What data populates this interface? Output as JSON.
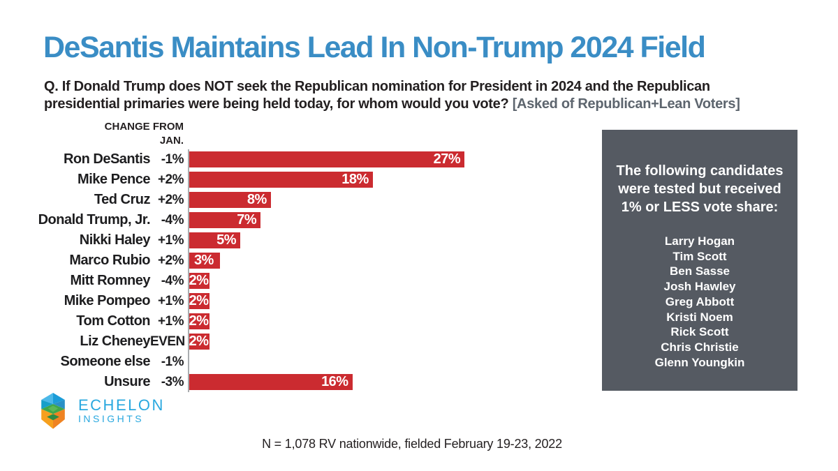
{
  "title": "DeSantis Maintains Lead In Non-Trump 2024 Field",
  "question": {
    "line1": "Q. If Donald Trump does NOT seek the Republican nomination for President in 2024 and the Republican",
    "line2": "presidential primaries were being held today, for whom would you vote?",
    "note": "[Asked of Republican+Lean Voters]"
  },
  "chart_data": {
    "type": "bar",
    "orientation": "horizontal",
    "change_header": [
      "CHANGE FROM",
      "JAN."
    ],
    "rows": [
      {
        "name": "Ron DeSantis",
        "change": "-1%",
        "value": 27,
        "label": "27%"
      },
      {
        "name": "Mike Pence",
        "change": "+2%",
        "value": 18,
        "label": "18%"
      },
      {
        "name": "Ted Cruz",
        "change": "+2%",
        "value": 8,
        "label": "8%"
      },
      {
        "name": "Donald Trump, Jr.",
        "change": "-4%",
        "value": 7,
        "label": "7%"
      },
      {
        "name": "Nikki Haley",
        "change": "+1%",
        "value": 5,
        "label": "5%"
      },
      {
        "name": "Marco Rubio",
        "change": "+2%",
        "value": 3,
        "label": "3%"
      },
      {
        "name": "Mitt Romney",
        "change": "-4%",
        "value": 2,
        "label": "2%"
      },
      {
        "name": "Mike Pompeo",
        "change": "+1%",
        "value": 2,
        "label": "2%"
      },
      {
        "name": "Tom Cotton",
        "change": "+1%",
        "value": 2,
        "label": "2%"
      },
      {
        "name": "Liz Cheney",
        "change": "EVEN",
        "value": 2,
        "label": "2%"
      },
      {
        "name": "Someone else",
        "change": "-1%",
        "value": 0,
        "label": ""
      },
      {
        "name": "Unsure",
        "change": "-3%",
        "value": 16,
        "label": "16%"
      }
    ],
    "xlim": [
      0,
      30
    ],
    "unit": "percent",
    "bar_color": "#cb2b30",
    "axis_color": "#a9adb0",
    "grid": false,
    "legend": false
  },
  "sidebox": {
    "heading": "The following candidates were tested but received 1% or LESS vote share:",
    "candidates": [
      "Larry Hogan",
      "Tim Scott",
      "Ben Sasse",
      "Josh Hawley",
      "Greg Abbott",
      "Kristi Noem",
      "Rick Scott",
      "Chris Christie",
      "Glenn Youngkin"
    ],
    "bg_color": "#555a62"
  },
  "logo": {
    "line1": "ECHELON",
    "line2": "INSIGHTS"
  },
  "footer": "N = 1,078 RV nationwide, fielded February 19-23, 2022",
  "colors": {
    "title_blue": "#3a8dc5",
    "bar_red": "#cb2b30",
    "box_gray": "#555a62",
    "note_gray": "#5d656e",
    "logo_blue": "#29a8df"
  }
}
